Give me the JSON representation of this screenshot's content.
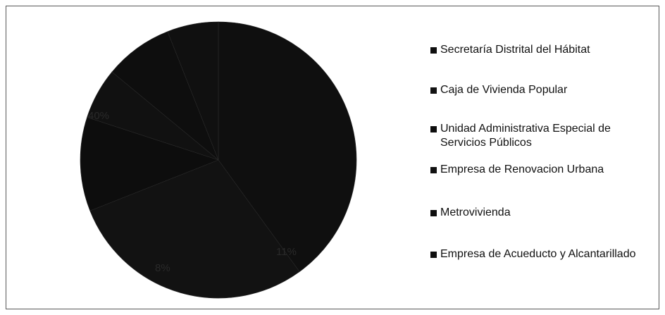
{
  "chart_data": {
    "type": "pie",
    "title": "",
    "categories": [
      "Secretaría Distrital del Hábitat",
      "Caja de Vivienda Popular",
      "Unidad Administrativa Especial de Servicios Públicos",
      "Empresa de Renovacion Urbana",
      "Metrovivienda",
      "Empresa de Acueducto y Alcantarillado"
    ],
    "values": [
      40,
      29,
      11,
      6,
      8,
      6
    ],
    "data_labels": [
      "40%",
      "",
      "11%",
      "",
      "8%",
      ""
    ],
    "legend_position": "right",
    "colors": [
      "#0f0f0f",
      "#121212",
      "#0d0d0d",
      "#111111",
      "#0e0e0e",
      "#101010"
    ]
  }
}
